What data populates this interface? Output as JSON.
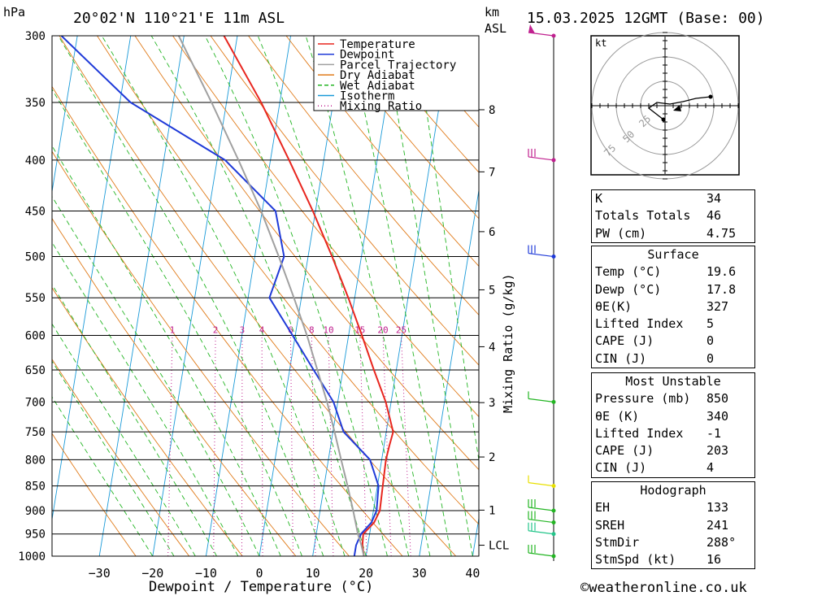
{
  "header": {
    "location": "20°02'N 110°21'E 11m ASL",
    "datetime": "15.03.2025 12GMT (Base: 00)",
    "hpa_label": "hPa",
    "km_label": "km",
    "asl_label": "ASL"
  },
  "footer": {
    "copyright": "©weatheronline.co.uk"
  },
  "legend": {
    "entries": [
      {
        "name": "Temperature",
        "color": "#e8261f",
        "dash": "solid"
      },
      {
        "name": "Dewpoint",
        "color": "#1f3ad8",
        "dash": "solid"
      },
      {
        "name": "Parcel Trajectory",
        "color": "#a0a0a0",
        "dash": "solid"
      },
      {
        "name": "Dry Adiabat",
        "color": "#e07b1a",
        "dash": "solid"
      },
      {
        "name": "Wet Adiabat",
        "color": "#23b523",
        "dash": "dashed"
      },
      {
        "name": "Isotherm",
        "color": "#1a9ad8",
        "dash": "solid"
      },
      {
        "name": "Mixing Ratio",
        "color": "#c0208f",
        "dash": "dotted"
      }
    ]
  },
  "chart_data": {
    "type": "line",
    "xlabel": "Dewpoint / Temperature (°C)",
    "ylabel": "hPa",
    "y2label": "Mixing Ratio (g/kg)",
    "x_ticks": [
      -30,
      -20,
      -10,
      0,
      10,
      20,
      30,
      40
    ],
    "xlim": [
      -40,
      40
    ],
    "pressure_levels": [
      300,
      350,
      400,
      450,
      500,
      550,
      600,
      650,
      700,
      750,
      800,
      850,
      900,
      950,
      1000
    ],
    "ylim": [
      300,
      1000
    ],
    "height_km_ticks": [
      "8",
      "7",
      "6",
      "5",
      "4",
      "3",
      "2",
      "1",
      "LCL"
    ],
    "mixing_ratio_labels": [
      "1",
      "2",
      "3",
      "4",
      "6",
      "8",
      "10",
      "15",
      "20",
      "25"
    ],
    "series": [
      {
        "name": "Temperature",
        "points": [
          [
            1000,
            19.6
          ],
          [
            975,
            19.0
          ],
          [
            950,
            18.8
          ],
          [
            925,
            20.5
          ],
          [
            900,
            21.2
          ],
          [
            850,
            21.0
          ],
          [
            800,
            20.8
          ],
          [
            775,
            21.0
          ],
          [
            750,
            21.3
          ],
          [
            700,
            19.0
          ],
          [
            650,
            15.8
          ],
          [
            600,
            12.5
          ],
          [
            550,
            8.8
          ],
          [
            500,
            4.5
          ],
          [
            450,
            -0.5
          ],
          [
            400,
            -6.5
          ],
          [
            350,
            -13.5
          ],
          [
            300,
            -22.5
          ]
        ]
      },
      {
        "name": "Dewpoint",
        "points": [
          [
            1000,
            17.8
          ],
          [
            975,
            17.8
          ],
          [
            950,
            18.4
          ],
          [
            925,
            20.0
          ],
          [
            900,
            20.6
          ],
          [
            850,
            20.2
          ],
          [
            800,
            17.8
          ],
          [
            750,
            12.0
          ],
          [
            700,
            9.2
          ],
          [
            650,
            4.5
          ],
          [
            600,
            -0.5
          ],
          [
            550,
            -6.0
          ],
          [
            500,
            -4.5
          ],
          [
            450,
            -7.5
          ],
          [
            400,
            -18.5
          ],
          [
            350,
            -38.0
          ],
          [
            300,
            -53.0
          ]
        ]
      },
      {
        "name": "Parcel Trajectory",
        "points": [
          [
            1000,
            19.6
          ],
          [
            975,
            18.8
          ],
          [
            950,
            17.8
          ],
          [
            900,
            16.2
          ],
          [
            850,
            14.4
          ],
          [
            800,
            12.4
          ],
          [
            750,
            10.3
          ],
          [
            700,
            8.0
          ],
          [
            650,
            5.2
          ],
          [
            600,
            2.2
          ],
          [
            550,
            -1.4
          ],
          [
            500,
            -5.5
          ],
          [
            450,
            -10.2
          ],
          [
            400,
            -16.0
          ],
          [
            350,
            -22.8
          ],
          [
            300,
            -31.0
          ]
        ]
      }
    ],
    "wind_barbs": [
      {
        "pressure": 300,
        "color": "#c0208f",
        "type": "pennant"
      },
      {
        "pressure": 400,
        "color": "#c0208f",
        "type": "barbs"
      },
      {
        "pressure": 500,
        "color": "#1f3ad8",
        "type": "barbs"
      },
      {
        "pressure": 700,
        "color": "#23b523",
        "type": "barb"
      },
      {
        "pressure": 850,
        "color": "#e8e000",
        "type": "barb"
      },
      {
        "pressure": 900,
        "color": "#23b523",
        "type": "barbs"
      },
      {
        "pressure": 925,
        "color": "#23b523",
        "type": "barbs"
      },
      {
        "pressure": 950,
        "color": "#23c58a",
        "type": "barbs"
      },
      {
        "pressure": 1000,
        "color": "#23b523",
        "type": "barbs"
      }
    ]
  },
  "hodograph": {
    "unit_label": "kt",
    "ring_labels": [
      "75",
      "50",
      "25"
    ]
  },
  "indices": {
    "top": [
      {
        "label": "K",
        "value": "34"
      },
      {
        "label": "Totals Totals",
        "value": "46"
      },
      {
        "label": "PW (cm)",
        "value": "4.75"
      }
    ],
    "surface": {
      "title": "Surface",
      "rows": [
        {
          "label": "Temp (°C)",
          "value": "19.6"
        },
        {
          "label": "Dewp (°C)",
          "value": "17.8"
        },
        {
          "label": "θE(K)",
          "value": "327"
        },
        {
          "label": "Lifted Index",
          "value": "5"
        },
        {
          "label": "CAPE (J)",
          "value": "0"
        },
        {
          "label": "CIN (J)",
          "value": "0"
        }
      ]
    },
    "most_unstable": {
      "title": "Most Unstable",
      "rows": [
        {
          "label": "Pressure (mb)",
          "value": "850"
        },
        {
          "label": "θE (K)",
          "value": "340"
        },
        {
          "label": "Lifted Index",
          "value": "-1"
        },
        {
          "label": "CAPE (J)",
          "value": "203"
        },
        {
          "label": "CIN (J)",
          "value": "4"
        }
      ]
    },
    "hodograph_box": {
      "title": "Hodograph",
      "rows": [
        {
          "label": "EH",
          "value": "133"
        },
        {
          "label": "SREH",
          "value": "241"
        },
        {
          "label": "StmDir",
          "value": "288°"
        },
        {
          "label": "StmSpd (kt)",
          "value": "16"
        }
      ]
    }
  }
}
